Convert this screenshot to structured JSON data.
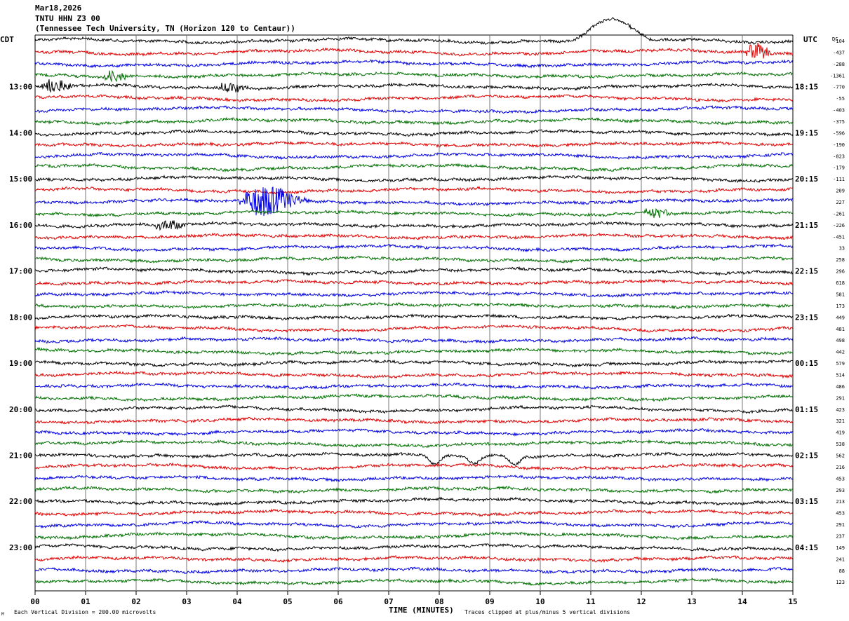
{
  "header": {
    "date": "Mar18,2026",
    "station": "TNTU HHN Z3 00",
    "site": "(Tennessee Tech University, TN (Horizon 120 to Centaur))"
  },
  "labels": {
    "left_tz": "CDT",
    "right_tz": "UTC",
    "dc": "DC",
    "footer_left": "Each Vertical Division =  200.00 microvolts",
    "footer_mid": "TIME (MINUTES)",
    "footer_right": "Traces clipped at plus/minus 5 vertical divisions",
    "corner": "M"
  },
  "chart_data": {
    "type": "line",
    "title": "TNTU HHN Z3 00",
    "xlabel": "TIME (MINUTES)",
    "x_ticks": [
      "00",
      "01",
      "02",
      "03",
      "04",
      "05",
      "06",
      "07",
      "08",
      "09",
      "10",
      "11",
      "12",
      "13",
      "14",
      "15"
    ],
    "xlim": [
      0,
      15
    ],
    "minutes_per_line": 15,
    "trace_colors": [
      "#000000",
      "#e00000",
      "#0000e0",
      "#007000"
    ],
    "left_hour_labels": [
      "13:00",
      "14:00",
      "15:00",
      "16:00",
      "17:00",
      "18:00",
      "19:00",
      "20:00",
      "21:00",
      "22:00",
      "23:00"
    ],
    "right_hour_labels": [
      "18:15",
      "19:15",
      "20:15",
      "21:15",
      "22:15",
      "23:15",
      "00:15",
      "01:15",
      "02:15",
      "03:15",
      "04:15"
    ],
    "dc_offsets": [
      "-104",
      "-437",
      "-288",
      "-1361",
      "-770",
      "-55",
      "-403",
      "-375",
      "-596",
      "-190",
      "-823",
      "-179",
      "-111",
      "209",
      "227",
      "-261",
      "-226",
      "-451",
      "33",
      "258",
      "296",
      "618",
      "581",
      "173",
      "449",
      "481",
      "498",
      "442",
      "579",
      "514",
      "486",
      "291",
      "423",
      "321",
      "419",
      "538",
      "562",
      "216",
      "453",
      "293",
      "213",
      "453",
      "291",
      "237",
      "149",
      "241",
      "88",
      "123"
    ],
    "events": [
      {
        "line": 0,
        "start_min": 10.6,
        "end_min": 12.2,
        "type": "bump",
        "amp": 28
      },
      {
        "line": 1,
        "start_min": 14.0,
        "end_min": 14.7,
        "type": "burst",
        "amp": 22
      },
      {
        "line": 3,
        "start_min": 1.35,
        "end_min": 1.9,
        "type": "burst",
        "amp": 16
      },
      {
        "line": 4,
        "start_min": 0.1,
        "end_min": 0.9,
        "type": "burst",
        "amp": 18
      },
      {
        "line": 4,
        "start_min": 3.6,
        "end_min": 4.3,
        "type": "burst",
        "amp": 14
      },
      {
        "line": 14,
        "start_min": 4.0,
        "end_min": 5.5,
        "type": "burst",
        "amp": 42
      },
      {
        "line": 15,
        "start_min": 12.0,
        "end_min": 12.7,
        "type": "burst",
        "amp": 14
      },
      {
        "line": 16,
        "start_min": 2.3,
        "end_min": 3.1,
        "type": "burst",
        "amp": 14
      },
      {
        "line": 36,
        "start_min": 7.5,
        "end_min": 9.9,
        "type": "dip",
        "amp": 12
      }
    ],
    "grid": "vertical"
  }
}
